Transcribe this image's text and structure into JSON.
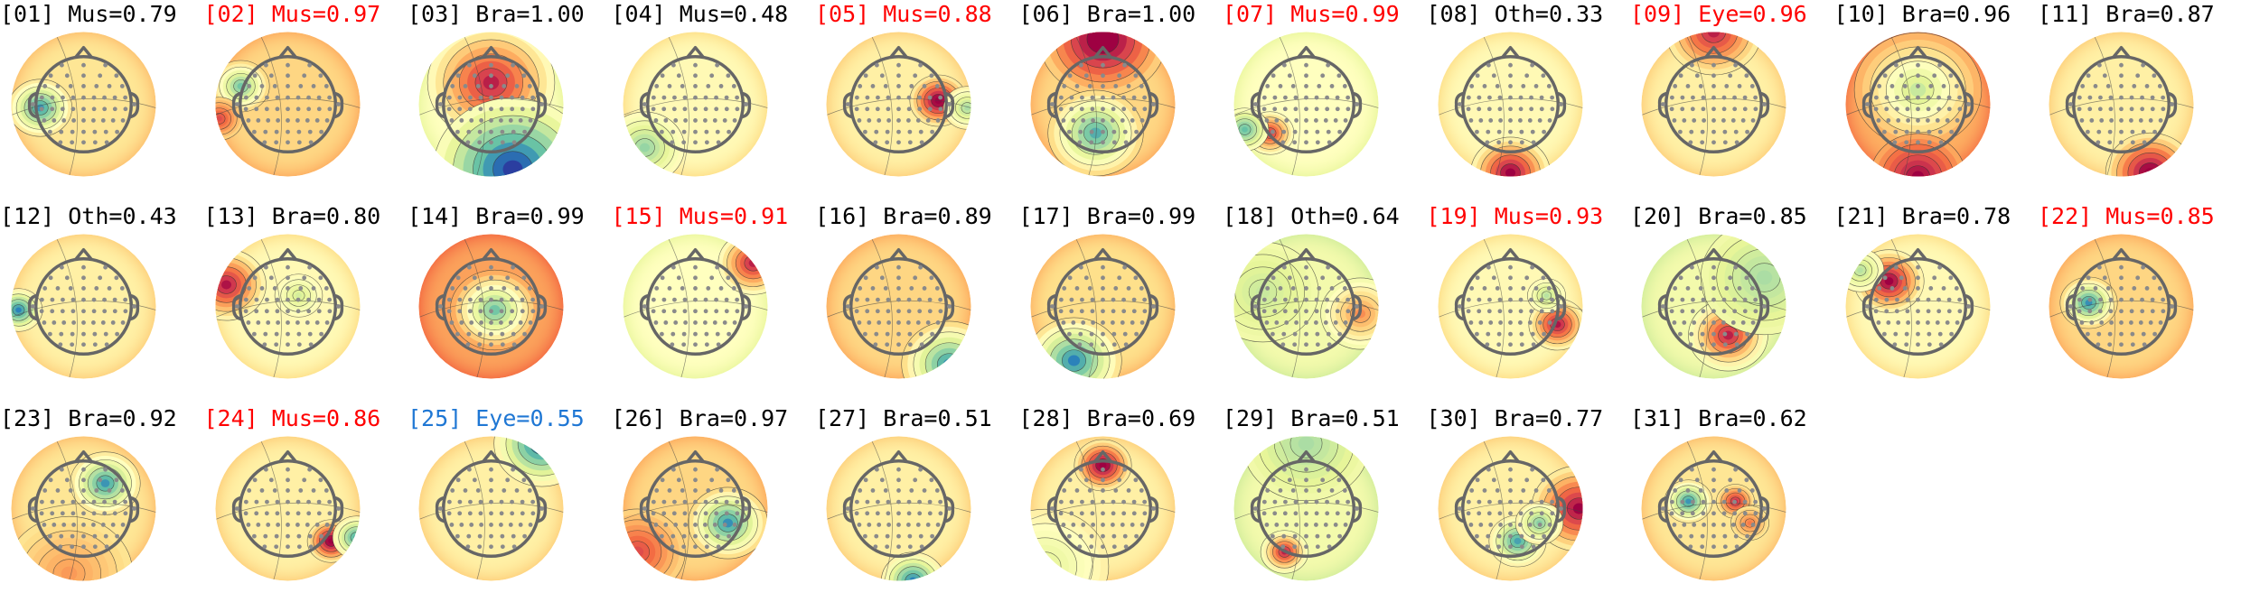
{
  "figure": {
    "label_colors": {
      "normal": "#000000",
      "flagged": "#ff0000",
      "eye_low": "#1f77d4"
    },
    "colormap": [
      "#2b3ea0",
      "#2b83ba",
      "#66c2a5",
      "#abdda4",
      "#e6f598",
      "#ffffbf",
      "#fee08b",
      "#fdae61",
      "#f46d43",
      "#d53e4f",
      "#9e0142"
    ]
  },
  "chart_data": {
    "type": "topomap-grid",
    "components": [
      {
        "label": "[01] Mus=0.79",
        "index": 1,
        "cls": "Mus",
        "p": 0.79,
        "color": "normal",
        "bg": 0.58,
        "blobs": [
          {
            "x": -0.6,
            "y": -0.05,
            "s": 0.2,
            "a": -0.9
          }
        ]
      },
      {
        "label": "[02] Mus=0.97",
        "index": 2,
        "cls": "Mus",
        "p": 0.97,
        "color": "flagged",
        "bg": 0.62,
        "blobs": [
          {
            "x": -0.65,
            "y": 0.25,
            "s": 0.18,
            "a": -0.8
          },
          {
            "x": -0.95,
            "y": -0.2,
            "s": 0.15,
            "a": 0.5
          }
        ]
      },
      {
        "label": "[03] Bra=1.00",
        "index": 3,
        "cls": "Bra",
        "p": 1.0,
        "color": "normal",
        "bg": 0.5,
        "blobs": [
          {
            "x": 0.0,
            "y": 0.3,
            "s": 0.4,
            "a": 0.9
          },
          {
            "x": 0.3,
            "y": -0.9,
            "s": 0.5,
            "a": -1.0
          }
        ]
      },
      {
        "label": "[04] Mus=0.48",
        "index": 4,
        "cls": "Mus",
        "p": 0.48,
        "color": "normal",
        "bg": 0.52,
        "blobs": [
          {
            "x": -0.7,
            "y": -0.6,
            "s": 0.25,
            "a": -0.5
          }
        ]
      },
      {
        "label": "[05] Mus=0.88",
        "index": 5,
        "cls": "Mus",
        "p": 0.88,
        "color": "flagged",
        "bg": 0.55,
        "blobs": [
          {
            "x": 0.55,
            "y": 0.05,
            "s": 0.18,
            "a": 1.0
          },
          {
            "x": 0.95,
            "y": -0.05,
            "s": 0.15,
            "a": -0.5
          }
        ]
      },
      {
        "label": "[06] Bra=1.00",
        "index": 6,
        "cls": "Bra",
        "p": 1.0,
        "color": "normal",
        "bg": 0.62,
        "blobs": [
          {
            "x": 0.0,
            "y": 0.9,
            "s": 0.4,
            "a": 0.9
          },
          {
            "x": -0.1,
            "y": -0.4,
            "s": 0.3,
            "a": -0.9
          }
        ]
      },
      {
        "label": "[07] Mus=0.99",
        "index": 7,
        "cls": "Mus",
        "p": 0.99,
        "color": "flagged",
        "bg": 0.5,
        "blobs": [
          {
            "x": -0.5,
            "y": -0.4,
            "s": 0.15,
            "a": 0.8
          },
          {
            "x": -0.85,
            "y": -0.35,
            "s": 0.15,
            "a": -0.6
          }
        ]
      },
      {
        "label": "[08] Oth=0.33",
        "index": 8,
        "cls": "Oth",
        "p": 0.33,
        "color": "normal",
        "bg": 0.52,
        "blobs": [
          {
            "x": 0.0,
            "y": -0.95,
            "s": 0.25,
            "a": 1.0
          }
        ]
      },
      {
        "label": "[09] Eye=0.96",
        "index": 9,
        "cls": "Eye",
        "p": 0.96,
        "color": "flagged",
        "bg": 0.55,
        "blobs": [
          {
            "x": 0.0,
            "y": 1.0,
            "s": 0.3,
            "a": 0.8
          }
        ]
      },
      {
        "label": "[10] Bra=0.96",
        "index": 10,
        "cls": "Bra",
        "p": 0.96,
        "color": "normal",
        "bg": 0.7,
        "blobs": [
          {
            "x": 0.0,
            "y": 0.2,
            "s": 0.4,
            "a": -0.7
          },
          {
            "x": 0.0,
            "y": -1.0,
            "s": 0.3,
            "a": 0.6
          }
        ]
      },
      {
        "label": "[11] Bra=0.87",
        "index": 11,
        "cls": "Bra",
        "p": 0.87,
        "color": "normal",
        "bg": 0.55,
        "blobs": [
          {
            "x": 0.4,
            "y": -0.95,
            "s": 0.28,
            "a": 1.0
          }
        ]
      },
      {
        "label": "[12] Oth=0.43",
        "index": 12,
        "cls": "Oth",
        "p": 0.43,
        "color": "normal",
        "bg": 0.55,
        "blobs": [
          {
            "x": -0.9,
            "y": -0.05,
            "s": 0.15,
            "a": -0.9
          }
        ]
      },
      {
        "label": "[13] Bra=0.80",
        "index": 13,
        "cls": "Bra",
        "p": 0.8,
        "color": "normal",
        "bg": 0.52,
        "blobs": [
          {
            "x": -0.85,
            "y": 0.3,
            "s": 0.25,
            "a": 0.9
          },
          {
            "x": 0.15,
            "y": 0.15,
            "s": 0.15,
            "a": -0.3
          }
        ]
      },
      {
        "label": "[14] Bra=0.99",
        "index": 14,
        "cls": "Bra",
        "p": 0.99,
        "color": "normal",
        "bg": 0.72,
        "blobs": [
          {
            "x": 0.05,
            "y": -0.05,
            "s": 0.28,
            "a": -1.0
          }
        ]
      },
      {
        "label": "[15] Mus=0.91",
        "index": 15,
        "cls": "Mus",
        "p": 0.91,
        "color": "flagged",
        "bg": 0.5,
        "blobs": [
          {
            "x": 0.8,
            "y": 0.6,
            "s": 0.22,
            "a": 0.9
          }
        ]
      },
      {
        "label": "[16] Bra=0.89",
        "index": 16,
        "cls": "Bra",
        "p": 0.89,
        "color": "normal",
        "bg": 0.62,
        "blobs": [
          {
            "x": 0.7,
            "y": -0.8,
            "s": 0.3,
            "a": -1.0
          }
        ]
      },
      {
        "label": "[17] Bra=0.99",
        "index": 17,
        "cls": "Bra",
        "p": 0.99,
        "color": "normal",
        "bg": 0.6,
        "blobs": [
          {
            "x": -0.4,
            "y": -0.75,
            "s": 0.3,
            "a": -1.0
          }
        ]
      },
      {
        "label": "[18] Oth=0.64",
        "index": 18,
        "cls": "Oth",
        "p": 0.64,
        "color": "normal",
        "bg": 0.45,
        "blobs": [
          {
            "x": 0.75,
            "y": -0.1,
            "s": 0.25,
            "a": 0.6
          },
          {
            "x": -0.6,
            "y": 0.2,
            "s": 0.35,
            "a": -0.2
          }
        ]
      },
      {
        "label": "[19] Mus=0.93",
        "index": 19,
        "cls": "Mus",
        "p": 0.93,
        "color": "flagged",
        "bg": 0.52,
        "blobs": [
          {
            "x": 0.65,
            "y": -0.25,
            "s": 0.18,
            "a": 0.9
          },
          {
            "x": 0.5,
            "y": 0.15,
            "s": 0.12,
            "a": -0.4
          }
        ]
      },
      {
        "label": "[20] Bra=0.85",
        "index": 20,
        "cls": "Bra",
        "p": 0.85,
        "color": "normal",
        "bg": 0.45,
        "blobs": [
          {
            "x": 0.2,
            "y": -0.4,
            "s": 0.25,
            "a": 1.0
          },
          {
            "x": 0.7,
            "y": 0.4,
            "s": 0.4,
            "a": -0.3
          }
        ]
      },
      {
        "label": "[21] Bra=0.78",
        "index": 21,
        "cls": "Bra",
        "p": 0.78,
        "color": "normal",
        "bg": 0.52,
        "blobs": [
          {
            "x": -0.4,
            "y": 0.35,
            "s": 0.22,
            "a": 1.0
          },
          {
            "x": -0.8,
            "y": 0.5,
            "s": 0.15,
            "a": -0.4
          }
        ]
      },
      {
        "label": "[22] Mus=0.85",
        "index": 22,
        "cls": "Mus",
        "p": 0.85,
        "color": "flagged",
        "bg": 0.62,
        "blobs": [
          {
            "x": -0.45,
            "y": 0.05,
            "s": 0.18,
            "a": -1.0
          }
        ]
      },
      {
        "label": "[23] Bra=0.92",
        "index": 23,
        "cls": "Bra",
        "p": 0.92,
        "color": "normal",
        "bg": 0.58,
        "blobs": [
          {
            "x": 0.3,
            "y": 0.35,
            "s": 0.22,
            "a": -0.9
          },
          {
            "x": -0.2,
            "y": -0.9,
            "s": 0.4,
            "a": 0.3
          }
        ]
      },
      {
        "label": "[24] Mus=0.86",
        "index": 24,
        "cls": "Mus",
        "p": 0.86,
        "color": "flagged",
        "bg": 0.55,
        "blobs": [
          {
            "x": 0.6,
            "y": -0.45,
            "s": 0.15,
            "a": 1.0
          },
          {
            "x": 0.95,
            "y": -0.4,
            "s": 0.15,
            "a": -0.8
          }
        ]
      },
      {
        "label": "[25] Eye=0.55",
        "index": 25,
        "cls": "Eye",
        "p": 0.55,
        "color": "eye_low",
        "bg": 0.55,
        "blobs": [
          {
            "x": 0.7,
            "y": 0.9,
            "s": 0.3,
            "a": -1.0
          }
        ]
      },
      {
        "label": "[26] Bra=0.97",
        "index": 26,
        "cls": "Bra",
        "p": 0.97,
        "color": "normal",
        "bg": 0.62,
        "blobs": [
          {
            "x": 0.45,
            "y": -0.2,
            "s": 0.25,
            "a": -1.0
          },
          {
            "x": -0.8,
            "y": -0.6,
            "s": 0.3,
            "a": 0.5
          }
        ]
      },
      {
        "label": "[27] Bra=0.51",
        "index": 27,
        "cls": "Bra",
        "p": 0.51,
        "color": "normal",
        "bg": 0.55,
        "blobs": [
          {
            "x": 0.2,
            "y": -1.0,
            "s": 0.2,
            "a": -0.9
          }
        ]
      },
      {
        "label": "[28] Bra=0.69",
        "index": 28,
        "cls": "Bra",
        "p": 0.69,
        "color": "normal",
        "bg": 0.55,
        "blobs": [
          {
            "x": 0.0,
            "y": 0.6,
            "s": 0.18,
            "a": 1.0
          },
          {
            "x": -0.8,
            "y": -0.8,
            "s": 0.4,
            "a": -0.3
          }
        ]
      },
      {
        "label": "[29] Bra=0.51",
        "index": 29,
        "cls": "Bra",
        "p": 0.51,
        "color": "normal",
        "bg": 0.45,
        "blobs": [
          {
            "x": -0.3,
            "y": -0.6,
            "s": 0.15,
            "a": 1.0
          },
          {
            "x": 0.0,
            "y": 0.9,
            "s": 0.4,
            "a": -0.3
          }
        ]
      },
      {
        "label": "[30] Bra=0.77",
        "index": 30,
        "cls": "Bra",
        "p": 0.77,
        "color": "normal",
        "bg": 0.55,
        "blobs": [
          {
            "x": 0.95,
            "y": 0.0,
            "s": 0.3,
            "a": 0.9
          },
          {
            "x": 0.1,
            "y": -0.45,
            "s": 0.18,
            "a": -0.8
          },
          {
            "x": 0.4,
            "y": -0.2,
            "s": 0.15,
            "a": -0.6
          }
        ]
      },
      {
        "label": "[31] Bra=0.62",
        "index": 31,
        "cls": "Bra",
        "p": 0.62,
        "color": "normal",
        "bg": 0.58,
        "blobs": [
          {
            "x": -0.35,
            "y": 0.1,
            "s": 0.15,
            "a": -0.9
          },
          {
            "x": 0.3,
            "y": 0.1,
            "s": 0.12,
            "a": 0.7
          },
          {
            "x": 0.5,
            "y": -0.2,
            "s": 0.12,
            "a": 0.4
          }
        ]
      }
    ]
  }
}
